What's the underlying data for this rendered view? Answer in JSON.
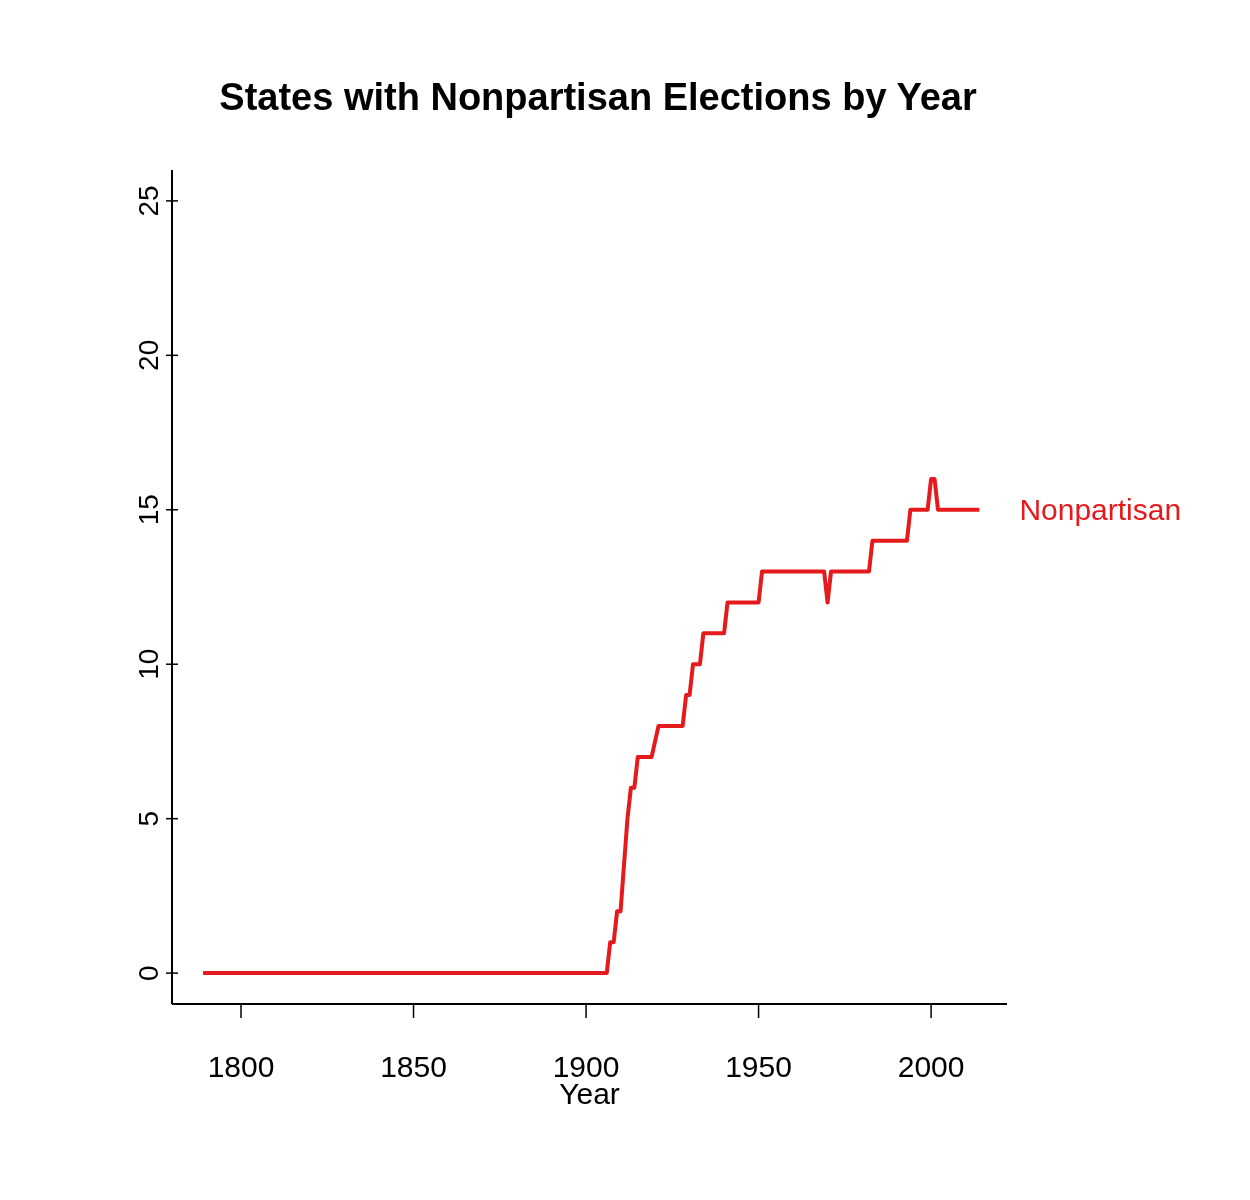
{
  "chart_data": {
    "type": "line",
    "title": "States with Nonpartisan Elections by Year",
    "xlabel": "Year",
    "series": [
      {
        "name": "Nonpartisan",
        "color": "#e41a1c",
        "x": [
          1789,
          1906,
          1907,
          1908,
          1909,
          1910,
          1912,
          1913,
          1914,
          1915,
          1919,
          1921,
          1928,
          1929,
          1930,
          1931,
          1933,
          1934,
          1940,
          1941,
          1950,
          1951,
          1969,
          1970,
          1971,
          1982,
          1983,
          1993,
          1994,
          1999,
          2000,
          2001,
          2002,
          2014
        ],
        "values": [
          0,
          0,
          1,
          1,
          2,
          2,
          5,
          6,
          6,
          7,
          7,
          8,
          8,
          9,
          9,
          10,
          10,
          11,
          11,
          12,
          12,
          13,
          13,
          12,
          13,
          13,
          14,
          14,
          15,
          15,
          16,
          16,
          15,
          15
        ]
      }
    ],
    "xlim": [
      1780,
      2022
    ],
    "xticks": [
      1800,
      1850,
      1900,
      1950,
      2000
    ],
    "ylim": [
      -1,
      26
    ],
    "yticks": [
      0,
      5,
      10,
      15,
      20,
      25
    ],
    "grid": false,
    "legend": false,
    "marker": "none",
    "line_style": "solid"
  }
}
